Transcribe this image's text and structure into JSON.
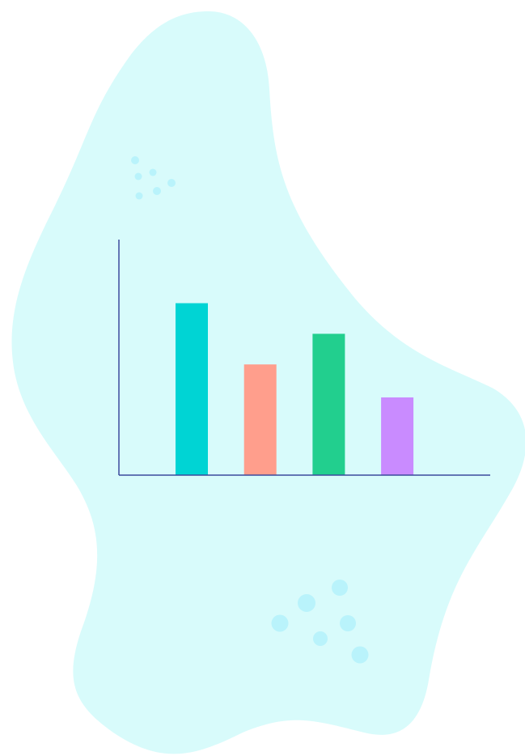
{
  "chart_data": {
    "type": "bar",
    "categories": [
      null,
      null,
      null,
      null
    ],
    "values": [
      73,
      47,
      60,
      33
    ],
    "colors": [
      "#00d4d4",
      "#ff9e8c",
      "#22cf8e",
      "#c98bff"
    ],
    "axis_color": "#3a4a9c",
    "ylim": [
      0,
      100
    ]
  }
}
